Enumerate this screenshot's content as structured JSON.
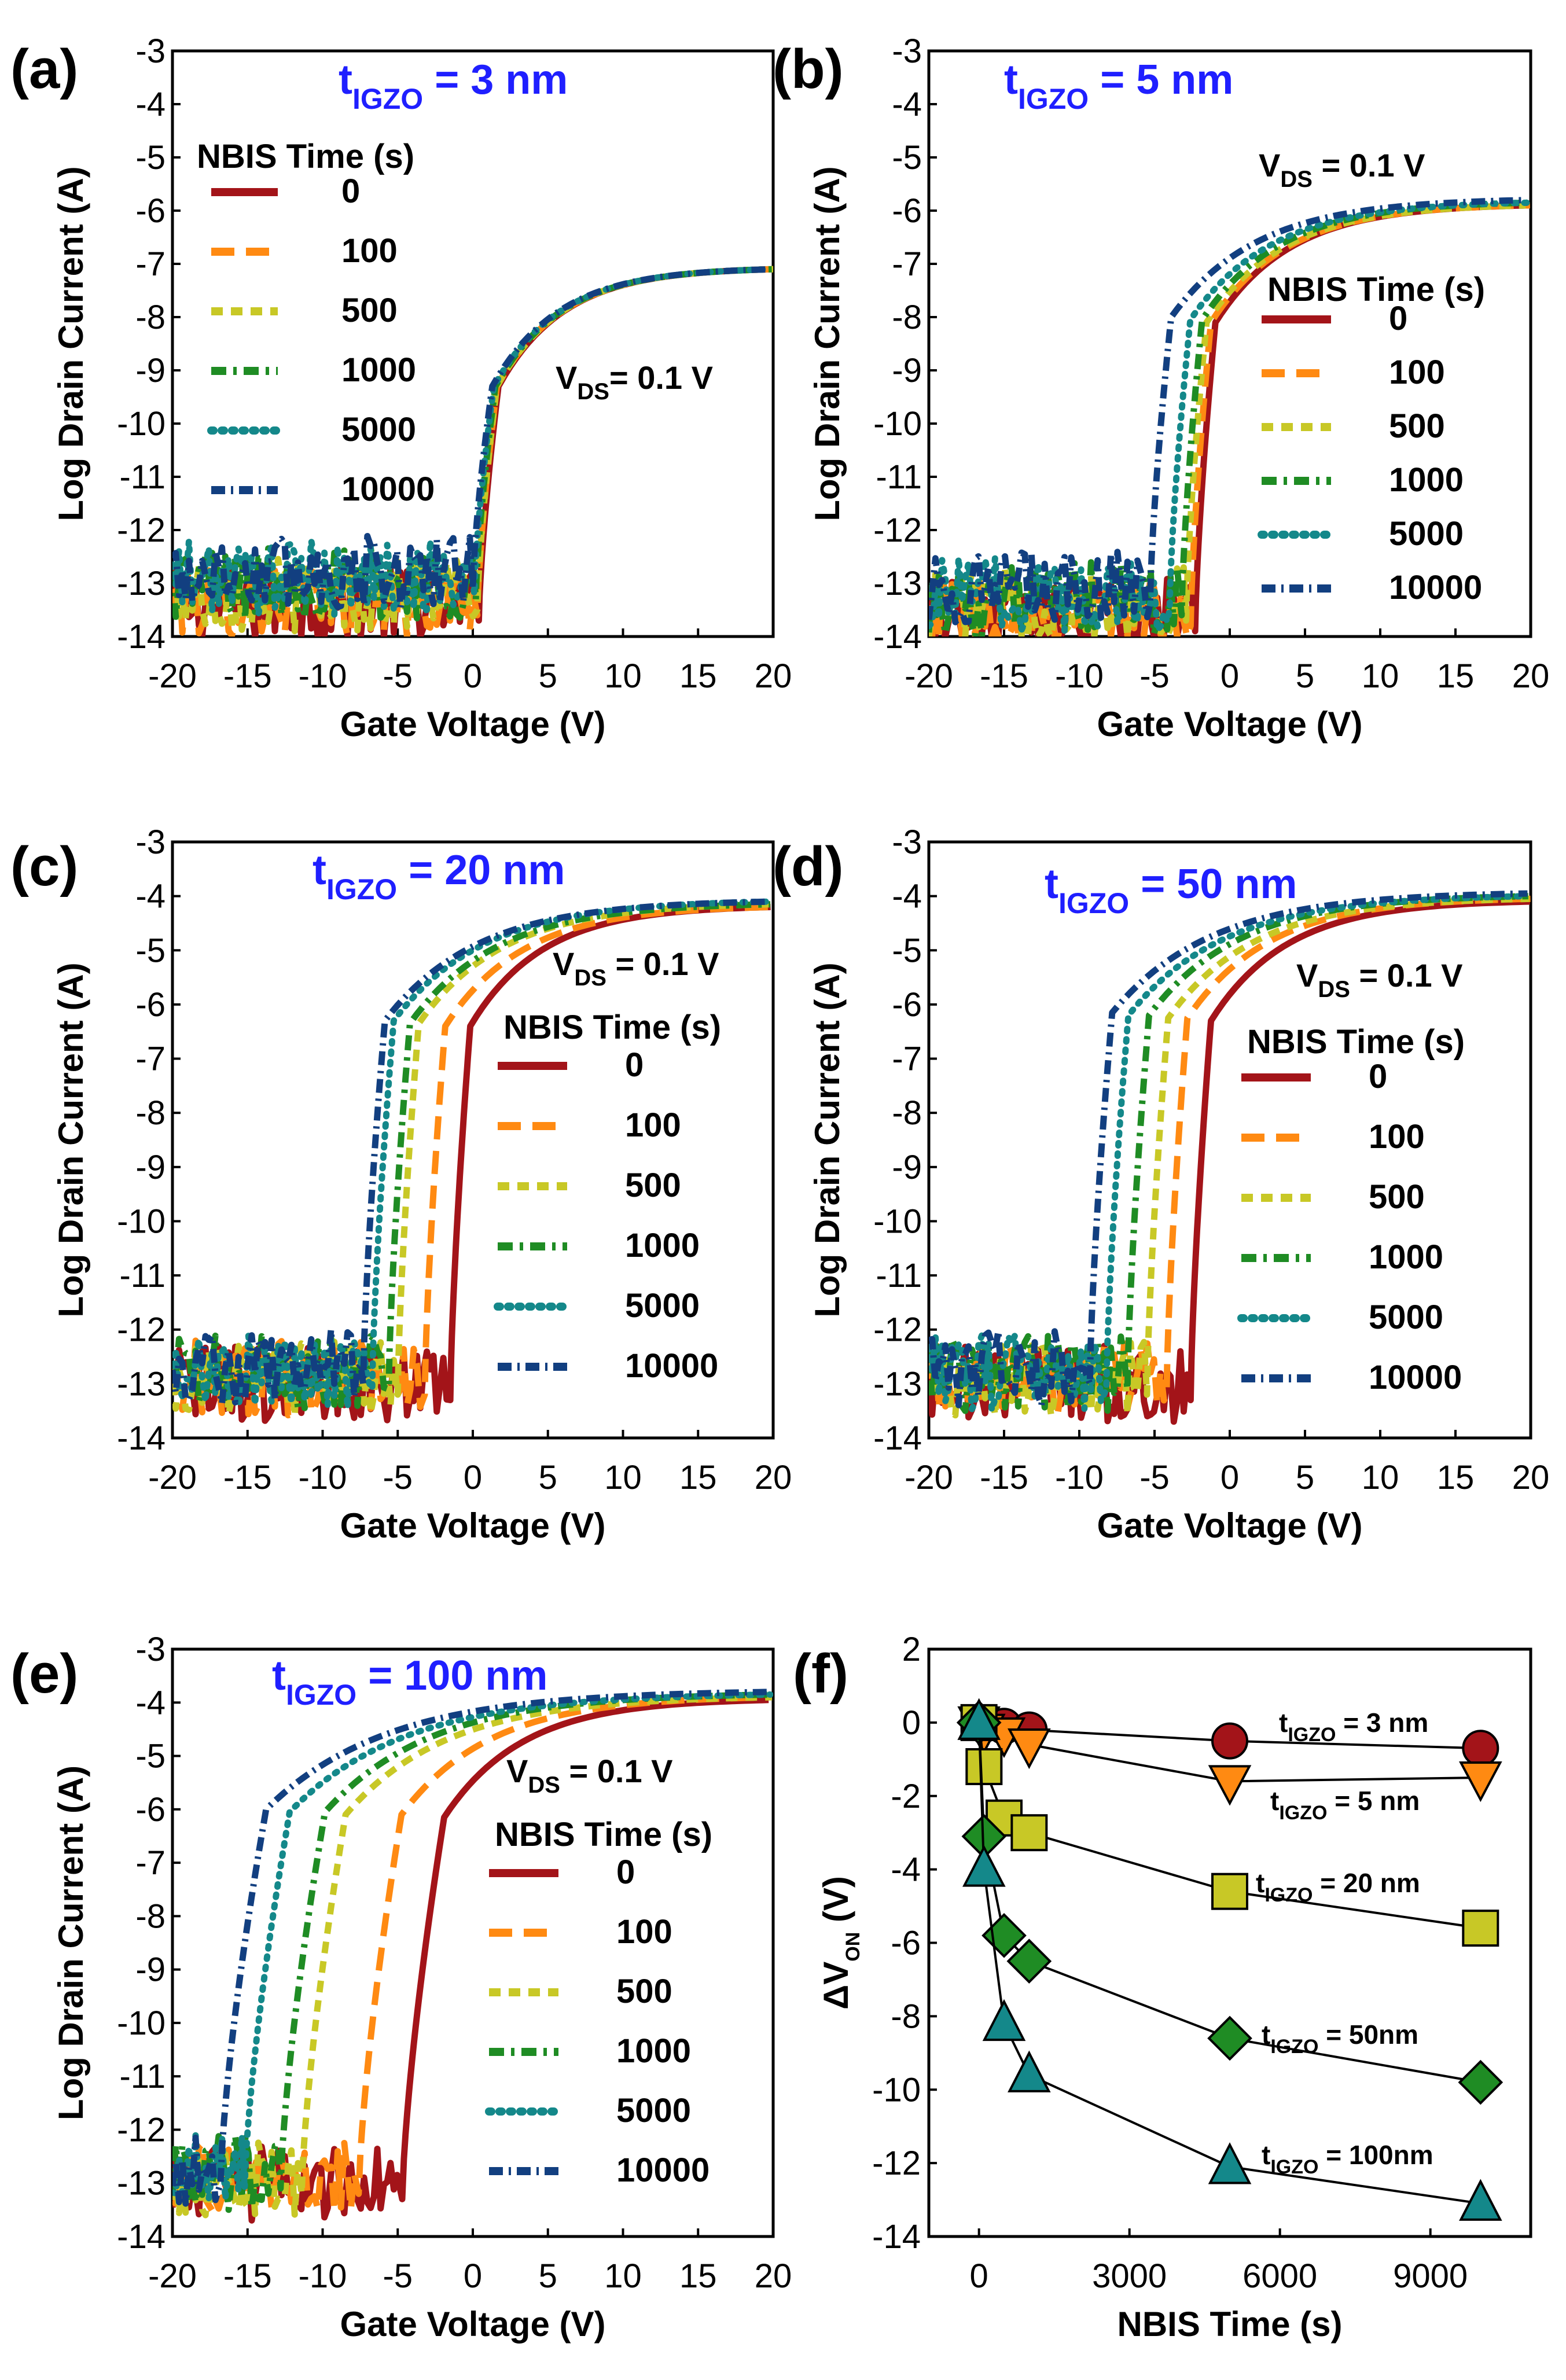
{
  "figure": {
    "ylabel": "Log Drain Current (A)",
    "xlabel": "Gate Voltage (V)",
    "legend_title": "NBIS Time (s)",
    "vds_prefix": "V",
    "vds_sub": "DS",
    "vds_value": " = 0.1 V"
  },
  "series_colors": [
    "#a31419",
    "#ff8a12",
    "#c8c826",
    "#1f8c24",
    "#14888a",
    "#123f80"
  ],
  "chart_data": [
    {
      "panel": "(a)",
      "type": "line",
      "title_main": "t",
      "title_sub": "IGZO",
      "title_rest": " = 3 nm",
      "vds_text": "= 0.1 V",
      "xlabel": "Gate Voltage (V)",
      "ylabel": "Log Drain Current (A)",
      "xlim": [
        -20,
        20
      ],
      "ylim": [
        -14,
        -3
      ],
      "xticks": [
        "-20",
        "-15",
        "-10",
        "-5",
        "0",
        "5",
        "10",
        "15",
        "20"
      ],
      "yticks": [
        "-3",
        "-4",
        "-5",
        "-6",
        "-7",
        "-8",
        "-9",
        "-10",
        "-11",
        "-12",
        "-13",
        "-14"
      ],
      "legend_title": "NBIS Time (s)",
      "legend": [
        "0",
        "100",
        "500",
        "1000",
        "5000",
        "10000"
      ],
      "series": [
        {
          "name": "0",
          "von": 0.4,
          "on_at_20": -7.1,
          "noise_floor": -13.4
        },
        {
          "name": "100",
          "von": 0.3,
          "on_at_20": -7.1,
          "noise_floor": -13.3
        },
        {
          "name": "500",
          "von": 0.3,
          "on_at_20": -7.1,
          "noise_floor": -13.2
        },
        {
          "name": "1000",
          "von": 0.2,
          "on_at_20": -7.1,
          "noise_floor": -13.0
        },
        {
          "name": "5000",
          "von": 0.1,
          "on_at_20": -7.1,
          "noise_floor": -12.9
        },
        {
          "name": "10000",
          "von": 0.0,
          "on_at_20": -7.1,
          "noise_floor": -12.8
        }
      ]
    },
    {
      "panel": "(b)",
      "type": "line",
      "title_main": "t",
      "title_sub": "IGZO",
      "title_rest": " = 5 nm",
      "vds_text": " = 0.1 V",
      "xlabel": "Gate Voltage (V)",
      "ylabel": "Log Drain Current (A)",
      "xlim": [
        -20,
        20
      ],
      "ylim": [
        -14,
        -3
      ],
      "xticks": [
        "-20",
        "-15",
        "-10",
        "-5",
        "0",
        "5",
        "10",
        "15",
        "20"
      ],
      "yticks": [
        "-3",
        "-4",
        "-5",
        "-6",
        "-7",
        "-8",
        "-9",
        "-10",
        "-11",
        "-12",
        "-13",
        "-14"
      ],
      "legend_title": "NBIS Time (s)",
      "legend": [
        "0",
        "100",
        "500",
        "1000",
        "5000",
        "10000"
      ],
      "series": [
        {
          "name": "0",
          "von": -2.3,
          "on_at_20": -5.9,
          "noise_floor": -13.6
        },
        {
          "name": "100",
          "von": -2.6,
          "on_at_20": -5.9,
          "noise_floor": -13.5
        },
        {
          "name": "500",
          "von": -2.9,
          "on_at_20": -5.9,
          "noise_floor": -13.4
        },
        {
          "name": "1000",
          "von": -3.2,
          "on_at_20": -5.85,
          "noise_floor": -13.3
        },
        {
          "name": "5000",
          "von": -4.0,
          "on_at_20": -5.85,
          "noise_floor": -13.2
        },
        {
          "name": "10000",
          "von": -5.3,
          "on_at_20": -5.8,
          "noise_floor": -13.1
        }
      ]
    },
    {
      "panel": "(c)",
      "type": "line",
      "title_main": "t",
      "title_sub": "IGZO",
      "title_rest": " = 20 nm",
      "vds_text": " = 0.1 V",
      "xlabel": "Gate Voltage (V)",
      "ylabel": "Log Drain Current (A)",
      "xlim": [
        -20,
        20
      ],
      "ylim": [
        -14,
        -3
      ],
      "xticks": [
        "-20",
        "-15",
        "-10",
        "-5",
        "0",
        "5",
        "10",
        "15",
        "20"
      ],
      "yticks": [
        "-3",
        "-4",
        "-5",
        "-6",
        "-7",
        "-8",
        "-9",
        "-10",
        "-11",
        "-12",
        "-13",
        "-14"
      ],
      "legend_title": "NBIS Time (s)",
      "legend": [
        "0",
        "100",
        "500",
        "1000",
        "5000",
        "10000"
      ],
      "series": [
        {
          "name": "0",
          "von": -1.5,
          "on_at_20": -4.2,
          "noise_floor": -13.0
        },
        {
          "name": "100",
          "von": -3.2,
          "on_at_20": -4.2,
          "noise_floor": -12.9
        },
        {
          "name": "500",
          "von": -5.0,
          "on_at_20": -4.15,
          "noise_floor": -12.9
        },
        {
          "name": "1000",
          "von": -5.6,
          "on_at_20": -4.15,
          "noise_floor": -12.8
        },
        {
          "name": "5000",
          "von": -6.7,
          "on_at_20": -4.1,
          "noise_floor": -12.8
        },
        {
          "name": "10000",
          "von": -7.3,
          "on_at_20": -4.1,
          "noise_floor": -12.7
        }
      ]
    },
    {
      "panel": "(d)",
      "type": "line",
      "title_main": "t",
      "title_sub": "IGZO",
      "title_rest": " = 50 nm",
      "vds_text": " = 0.1 V",
      "xlabel": "Gate Voltage (V)",
      "ylabel": "Log Drain Current (A)",
      "xlim": [
        -20,
        20
      ],
      "ylim": [
        -14,
        -3
      ],
      "xticks": [
        "-20",
        "-15",
        "-10",
        "-5",
        "0",
        "5",
        "10",
        "15",
        "20"
      ],
      "yticks": [
        "-3",
        "-4",
        "-5",
        "-6",
        "-7",
        "-8",
        "-9",
        "-10",
        "-11",
        "-12",
        "-13",
        "-14"
      ],
      "legend_title": "NBIS Time (s)",
      "legend": [
        "0",
        "100",
        "500",
        "1000",
        "5000",
        "10000"
      ],
      "series": [
        {
          "name": "0",
          "von": -2.6,
          "on_at_20": -4.1,
          "noise_floor": -13.0
        },
        {
          "name": "100",
          "von": -4.2,
          "on_at_20": -4.05,
          "noise_floor": -12.9
        },
        {
          "name": "500",
          "von": -5.5,
          "on_at_20": -4.05,
          "noise_floor": -12.9
        },
        {
          "name": "1000",
          "von": -6.8,
          "on_at_20": -4.0,
          "noise_floor": -12.8
        },
        {
          "name": "5000",
          "von": -8.2,
          "on_at_20": -4.0,
          "noise_floor": -12.8
        },
        {
          "name": "10000",
          "von": -9.3,
          "on_at_20": -3.95,
          "noise_floor": -12.7
        }
      ]
    },
    {
      "panel": "(e)",
      "type": "line",
      "title_main": "t",
      "title_sub": "IGZO",
      "title_rest": " = 100 nm",
      "vds_text": " = 0.1 V",
      "xlabel": "Gate Voltage (V)",
      "ylabel": "Log Drain Current (A)",
      "xlim": [
        -20,
        20
      ],
      "ylim": [
        -14,
        -3
      ],
      "xticks": [
        "-20",
        "-15",
        "-10",
        "-5",
        "0",
        "5",
        "10",
        "15",
        "20"
      ],
      "yticks": [
        "-3",
        "-4",
        "-5",
        "-6",
        "-7",
        "-8",
        "-9",
        "-10",
        "-11",
        "-12",
        "-13",
        "-14"
      ],
      "legend_title": "NBIS Time (s)",
      "legend": [
        "0",
        "100",
        "500",
        "1000",
        "5000",
        "10000"
      ],
      "series": [
        {
          "name": "0",
          "von": -4.7,
          "on_at_20": -3.95,
          "noise_floor": -13.0
        },
        {
          "name": "100",
          "von": -7.6,
          "on_at_20": -3.9,
          "noise_floor": -12.9
        },
        {
          "name": "500",
          "von": -11.4,
          "on_at_20": -3.9,
          "noise_floor": -12.9
        },
        {
          "name": "1000",
          "von": -12.8,
          "on_at_20": -3.85,
          "noise_floor": -12.8
        },
        {
          "name": "5000",
          "von": -15.2,
          "on_at_20": -3.85,
          "noise_floor": -12.8
        },
        {
          "name": "10000",
          "von": -16.8,
          "on_at_20": -3.8,
          "noise_floor": -12.7
        }
      ]
    },
    {
      "panel": "(f)",
      "type": "scatter",
      "xlabel": "NBIS Time (s)",
      "ylabel_main": "ΔV",
      "ylabel_sub": "ON",
      "ylabel_rest": " (V)",
      "xlim": [
        -1000,
        11000
      ],
      "ylim": [
        -14,
        2
      ],
      "xticks": [
        "0",
        "3000",
        "6000",
        "9000"
      ],
      "xtick_values": [
        0,
        3000,
        6000,
        9000
      ],
      "yticks": [
        "2",
        "0",
        "-2",
        "-4",
        "-6",
        "-8",
        "-10",
        "-12",
        "-14"
      ],
      "x": [
        0,
        100,
        500,
        1000,
        5000,
        10000
      ],
      "series": [
        {
          "name": "3 nm",
          "label_main": "t",
          "label_sub": "IGZO",
          "label_rest": " = 3 nm",
          "marker": "circle",
          "color": "#a31419",
          "values": [
            0,
            -0.05,
            -0.1,
            -0.2,
            -0.5,
            -0.7
          ]
        },
        {
          "name": "5 nm",
          "label_main": "t",
          "label_sub": "IGZO",
          "label_rest": " = 5 nm",
          "marker": "triangle-down",
          "color": "#ff8a12",
          "values": [
            0,
            -0.2,
            -0.3,
            -0.6,
            -1.6,
            -1.5
          ]
        },
        {
          "name": "20 nm",
          "label_main": "t",
          "label_sub": "IGZO",
          "label_rest": " = 20 nm",
          "marker": "square",
          "color": "#c8c826",
          "values": [
            0,
            -1.2,
            -2.6,
            -3.0,
            -4.6,
            -5.6
          ]
        },
        {
          "name": "50nm",
          "label_main": "t",
          "label_sub": "IGZO",
          "label_rest": " = 50nm",
          "marker": "diamond",
          "color": "#1f8c24",
          "values": [
            0,
            -3.1,
            -5.8,
            -6.5,
            -8.6,
            -9.8
          ]
        },
        {
          "name": "100nm",
          "label_main": "t",
          "label_sub": "IGZO",
          "label_rest": " = 100nm",
          "marker": "triangle-up",
          "color": "#14888a",
          "values": [
            0,
            -4.0,
            -8.2,
            -9.6,
            -12.1,
            -13.1
          ]
        }
      ]
    }
  ]
}
